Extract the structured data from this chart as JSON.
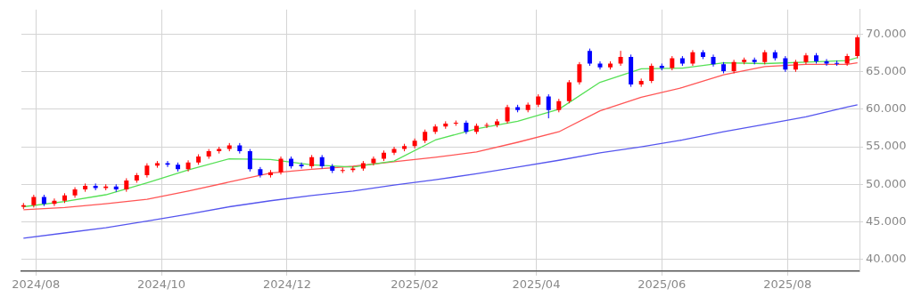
{
  "chart_data": {
    "type": "candlestick",
    "x": [
      "2024-07-26",
      "2024-07-31",
      "2024-08-05",
      "2024-08-10",
      "2024-08-15",
      "2024-08-20",
      "2024-08-25",
      "2024-08-30",
      "2024-09-04",
      "2024-09-09",
      "2024-09-14",
      "2024-09-19",
      "2024-09-24",
      "2024-09-29",
      "2024-10-04",
      "2024-10-09",
      "2024-10-14",
      "2024-10-19",
      "2024-10-24",
      "2024-10-29",
      "2024-11-03",
      "2024-11-08",
      "2024-11-13",
      "2024-11-18",
      "2024-11-23",
      "2024-11-28",
      "2024-12-03",
      "2024-12-08",
      "2024-12-13",
      "2024-12-18",
      "2024-12-23",
      "2024-12-28",
      "2025-01-02",
      "2025-01-07",
      "2025-01-12",
      "2025-01-17",
      "2025-01-22",
      "2025-01-27",
      "2025-02-01",
      "2025-02-06",
      "2025-02-11",
      "2025-02-16",
      "2025-02-21",
      "2025-02-26",
      "2025-03-03",
      "2025-03-08",
      "2025-03-13",
      "2025-03-18",
      "2025-03-23",
      "2025-03-28",
      "2025-04-02",
      "2025-04-07",
      "2025-04-12",
      "2025-04-17",
      "2025-04-22",
      "2025-04-27",
      "2025-05-02",
      "2025-05-07",
      "2025-05-12",
      "2025-05-17",
      "2025-05-22",
      "2025-05-27",
      "2025-06-01",
      "2025-06-06",
      "2025-06-11",
      "2025-06-16",
      "2025-06-21",
      "2025-06-26",
      "2025-07-01",
      "2025-07-06",
      "2025-07-11",
      "2025-07-16",
      "2025-07-21",
      "2025-07-26",
      "2025-07-31",
      "2025-08-05",
      "2025-08-10",
      "2025-08-15",
      "2025-08-20",
      "2025-08-25",
      "2025-08-30",
      "2025-09-04"
    ],
    "ohlc": [
      [
        47.0,
        47.5,
        46.7,
        47.2
      ],
      [
        47.2,
        48.6,
        46.9,
        48.3
      ],
      [
        48.3,
        48.6,
        47.1,
        47.4
      ],
      [
        47.4,
        48.1,
        47.1,
        47.8
      ],
      [
        47.8,
        48.8,
        47.5,
        48.5
      ],
      [
        48.5,
        49.6,
        48.2,
        49.3
      ],
      [
        49.3,
        50.1,
        49.0,
        49.8
      ],
      [
        49.8,
        50.1,
        49.2,
        49.5
      ],
      [
        49.5,
        50.0,
        49.2,
        49.7
      ],
      [
        49.7,
        50.0,
        49.0,
        49.3
      ],
      [
        49.3,
        50.8,
        49.0,
        50.5
      ],
      [
        50.5,
        51.5,
        50.2,
        51.2
      ],
      [
        51.2,
        52.8,
        50.9,
        52.5
      ],
      [
        52.5,
        53.1,
        52.2,
        52.8
      ],
      [
        52.8,
        53.1,
        52.3,
        52.6
      ],
      [
        52.6,
        52.9,
        51.7,
        52.0
      ],
      [
        52.0,
        53.2,
        51.7,
        52.9
      ],
      [
        52.9,
        54.0,
        52.6,
        53.7
      ],
      [
        53.7,
        54.7,
        53.4,
        54.4
      ],
      [
        54.4,
        55.0,
        54.1,
        54.7
      ],
      [
        54.7,
        55.5,
        54.4,
        55.2
      ],
      [
        55.2,
        55.5,
        54.1,
        54.4
      ],
      [
        54.4,
        54.7,
        51.7,
        52.0
      ],
      [
        52.0,
        52.3,
        50.9,
        51.2
      ],
      [
        51.2,
        51.9,
        50.9,
        51.6
      ],
      [
        51.6,
        53.7,
        51.3,
        53.4
      ],
      [
        53.4,
        53.7,
        52.1,
        52.4
      ],
      [
        52.6,
        52.9,
        52.1,
        52.4
      ],
      [
        52.4,
        53.9,
        52.1,
        53.6
      ],
      [
        53.6,
        53.9,
        52.1,
        52.4
      ],
      [
        52.4,
        52.7,
        51.5,
        51.8
      ],
      [
        51.8,
        52.2,
        51.5,
        51.9
      ],
      [
        51.9,
        52.4,
        51.6,
        52.1
      ],
      [
        52.1,
        53.1,
        51.8,
        52.8
      ],
      [
        52.8,
        53.7,
        52.5,
        53.4
      ],
      [
        53.4,
        54.5,
        53.1,
        54.2
      ],
      [
        54.2,
        55.0,
        53.9,
        54.7
      ],
      [
        54.7,
        55.4,
        54.4,
        55.1
      ],
      [
        55.1,
        56.1,
        54.8,
        55.8
      ],
      [
        55.8,
        57.3,
        55.5,
        57.0
      ],
      [
        57.0,
        58.0,
        56.7,
        57.7
      ],
      [
        57.7,
        58.4,
        57.4,
        58.1
      ],
      [
        58.1,
        58.5,
        57.8,
        58.2
      ],
      [
        58.2,
        58.5,
        56.7,
        57.0
      ],
      [
        57.0,
        58.1,
        56.7,
        57.8
      ],
      [
        57.8,
        58.2,
        57.5,
        57.9
      ],
      [
        57.9,
        58.7,
        57.6,
        58.4
      ],
      [
        58.4,
        60.6,
        58.1,
        60.3
      ],
      [
        60.3,
        60.6,
        59.6,
        59.9
      ],
      [
        59.9,
        60.9,
        59.6,
        60.6
      ],
      [
        60.6,
        62.0,
        60.3,
        61.7
      ],
      [
        61.7,
        62.0,
        58.8,
        59.9
      ],
      [
        59.9,
        61.4,
        59.6,
        61.1
      ],
      [
        61.1,
        63.9,
        60.8,
        63.6
      ],
      [
        63.6,
        66.3,
        63.3,
        66.0
      ],
      [
        67.8,
        68.1,
        65.8,
        66.1
      ],
      [
        66.1,
        66.4,
        65.3,
        65.6
      ],
      [
        65.6,
        66.4,
        65.3,
        66.1
      ],
      [
        66.1,
        67.8,
        65.8,
        67.0
      ],
      [
        67.0,
        67.3,
        63.0,
        63.3
      ],
      [
        63.3,
        64.1,
        63.0,
        63.8
      ],
      [
        63.8,
        66.1,
        63.5,
        65.8
      ],
      [
        65.8,
        66.1,
        65.2,
        65.5
      ],
      [
        65.5,
        67.1,
        65.2,
        66.8
      ],
      [
        66.8,
        67.1,
        65.8,
        66.1
      ],
      [
        66.1,
        67.9,
        65.8,
        67.6
      ],
      [
        67.6,
        67.9,
        66.7,
        67.0
      ],
      [
        67.0,
        67.3,
        65.7,
        66.0
      ],
      [
        66.0,
        66.3,
        64.8,
        65.1
      ],
      [
        65.1,
        66.6,
        64.8,
        66.3
      ],
      [
        66.3,
        66.9,
        66.0,
        66.6
      ],
      [
        66.6,
        66.9,
        66.0,
        66.3
      ],
      [
        66.3,
        67.9,
        66.0,
        67.6
      ],
      [
        67.6,
        67.9,
        66.5,
        66.8
      ],
      [
        66.8,
        67.1,
        65.0,
        65.3
      ],
      [
        65.3,
        66.6,
        65.0,
        66.3
      ],
      [
        66.3,
        67.5,
        66.0,
        67.2
      ],
      [
        67.2,
        67.5,
        66.1,
        66.4
      ],
      [
        66.4,
        66.7,
        65.8,
        66.1
      ],
      [
        66.2,
        66.5,
        65.8,
        66.1
      ],
      [
        66.1,
        67.4,
        65.8,
        67.1
      ],
      [
        67.1,
        69.9,
        66.8,
        69.6
      ]
    ],
    "colors": [
      "#ff0000",
      "#ff0000",
      "#0000ff",
      "#ff0000",
      "#ff0000",
      "#ff0000",
      "#ff0000",
      "#0000ff",
      "#ff0000",
      "#0000ff",
      "#ff0000",
      "#ff0000",
      "#ff0000",
      "#ff0000",
      "#0000ff",
      "#0000ff",
      "#ff0000",
      "#ff0000",
      "#ff0000",
      "#ff0000",
      "#ff0000",
      "#0000ff",
      "#0000ff",
      "#0000ff",
      "#ff0000",
      "#ff0000",
      "#0000ff",
      "#0000ff",
      "#ff0000",
      "#0000ff",
      "#0000ff",
      "#ff0000",
      "#ff0000",
      "#ff0000",
      "#ff0000",
      "#ff0000",
      "#ff0000",
      "#ff0000",
      "#ff0000",
      "#ff0000",
      "#ff0000",
      "#ff0000",
      "#ff0000",
      "#0000ff",
      "#ff0000",
      "#ff0000",
      "#ff0000",
      "#ff0000",
      "#0000ff",
      "#ff0000",
      "#ff0000",
      "#0000ff",
      "#ff0000",
      "#ff0000",
      "#ff0000",
      "#0000ff",
      "#0000ff",
      "#ff0000",
      "#ff0000",
      "#0000ff",
      "#ff0000",
      "#ff0000",
      "#0000ff",
      "#ff0000",
      "#0000ff",
      "#ff0000",
      "#0000ff",
      "#0000ff",
      "#0000ff",
      "#ff0000",
      "#ff0000",
      "#0000ff",
      "#ff0000",
      "#0000ff",
      "#0000ff",
      "#ff0000",
      "#ff0000",
      "#0000ff",
      "#0000ff",
      "#0000ff",
      "#ff0000",
      "#ff0000"
    ],
    "series": [
      {
        "type": "line",
        "color": "#55e055",
        "x": [
          "2024-07-26",
          "2024-08-15",
          "2024-09-04",
          "2024-09-24",
          "2024-10-14",
          "2024-11-03",
          "2024-11-23",
          "2024-12-13",
          "2025-01-02",
          "2025-01-22",
          "2025-02-11",
          "2025-03-03",
          "2025-03-23",
          "2025-04-12",
          "2025-05-02",
          "2025-05-22",
          "2025-06-11",
          "2025-07-01",
          "2025-07-21",
          "2025-08-10",
          "2025-08-30",
          "2025-09-04"
        ],
        "values": [
          47.0,
          47.7,
          48.6,
          50.2,
          51.9,
          53.4,
          53.3,
          52.6,
          52.3,
          53.1,
          55.9,
          57.4,
          58.4,
          60.0,
          63.6,
          65.4,
          65.5,
          66.2,
          66.1,
          66.3,
          66.5,
          66.9
        ]
      },
      {
        "type": "line",
        "color": "#ff5555",
        "x": [
          "2024-07-26",
          "2024-08-15",
          "2024-09-04",
          "2024-09-24",
          "2024-10-14",
          "2024-11-03",
          "2024-11-23",
          "2024-12-13",
          "2025-01-02",
          "2025-01-22",
          "2025-02-11",
          "2025-03-03",
          "2025-03-23",
          "2025-04-12",
          "2025-05-02",
          "2025-05-22",
          "2025-06-11",
          "2025-07-01",
          "2025-07-21",
          "2025-08-10",
          "2025-08-30",
          "2025-09-04"
        ],
        "values": [
          46.6,
          46.9,
          47.4,
          48.0,
          49.1,
          50.3,
          51.5,
          52.0,
          52.4,
          53.0,
          53.6,
          54.3,
          55.6,
          57.0,
          59.8,
          61.6,
          62.9,
          64.6,
          65.7,
          66.0,
          66.0,
          66.2
        ]
      },
      {
        "type": "line",
        "color": "#5555ee",
        "x": [
          "2024-07-26",
          "2024-08-15",
          "2024-09-04",
          "2024-09-24",
          "2024-10-14",
          "2024-11-03",
          "2024-11-23",
          "2024-12-13",
          "2025-01-02",
          "2025-01-22",
          "2025-02-11",
          "2025-03-03",
          "2025-03-23",
          "2025-04-12",
          "2025-05-02",
          "2025-05-22",
          "2025-06-11",
          "2025-07-01",
          "2025-07-21",
          "2025-08-10",
          "2025-08-30",
          "2025-09-04"
        ],
        "values": [
          42.8,
          43.5,
          44.2,
          45.1,
          46.0,
          47.0,
          47.8,
          48.5,
          49.1,
          49.9,
          50.6,
          51.4,
          52.3,
          53.2,
          54.2,
          55.0,
          55.9,
          57.0,
          58.0,
          59.0,
          60.3,
          60.6
        ]
      }
    ],
    "xlim": [
      "2024-07-25",
      "2025-09-05"
    ],
    "xticks": [
      {
        "value": "2024-08-01",
        "label": "2024/08"
      },
      {
        "value": "2024-10-01",
        "label": "2024/10"
      },
      {
        "value": "2024-12-01",
        "label": "2024/12"
      },
      {
        "value": "2025-02-01",
        "label": "2025/02"
      },
      {
        "value": "2025-04-01",
        "label": "2025/04"
      },
      {
        "value": "2025-06-01",
        "label": "2025/06"
      },
      {
        "value": "2025-08-01",
        "label": "2025/08"
      }
    ],
    "ylim": [
      38.4,
      73.3
    ],
    "yticks": [
      {
        "value": 40,
        "label": "40.000"
      },
      {
        "value": 45,
        "label": "45.000"
      },
      {
        "value": 50,
        "label": "50.000"
      },
      {
        "value": 55,
        "label": "55.000"
      },
      {
        "value": 60,
        "label": "60.000"
      },
      {
        "value": 65,
        "label": "65.000"
      },
      {
        "value": 70,
        "label": "70.000"
      }
    ],
    "grid": true,
    "legend": false
  }
}
